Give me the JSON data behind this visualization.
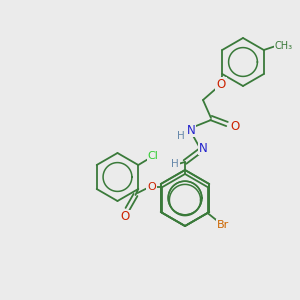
{
  "bg_color": "#ebebeb",
  "bond_color": "#3a7a3a",
  "atom_colors": {
    "O": "#cc2200",
    "N": "#2222cc",
    "Cl": "#33cc33",
    "Br": "#cc6600",
    "H": "#6688aa",
    "C": "#3a7a3a"
  }
}
